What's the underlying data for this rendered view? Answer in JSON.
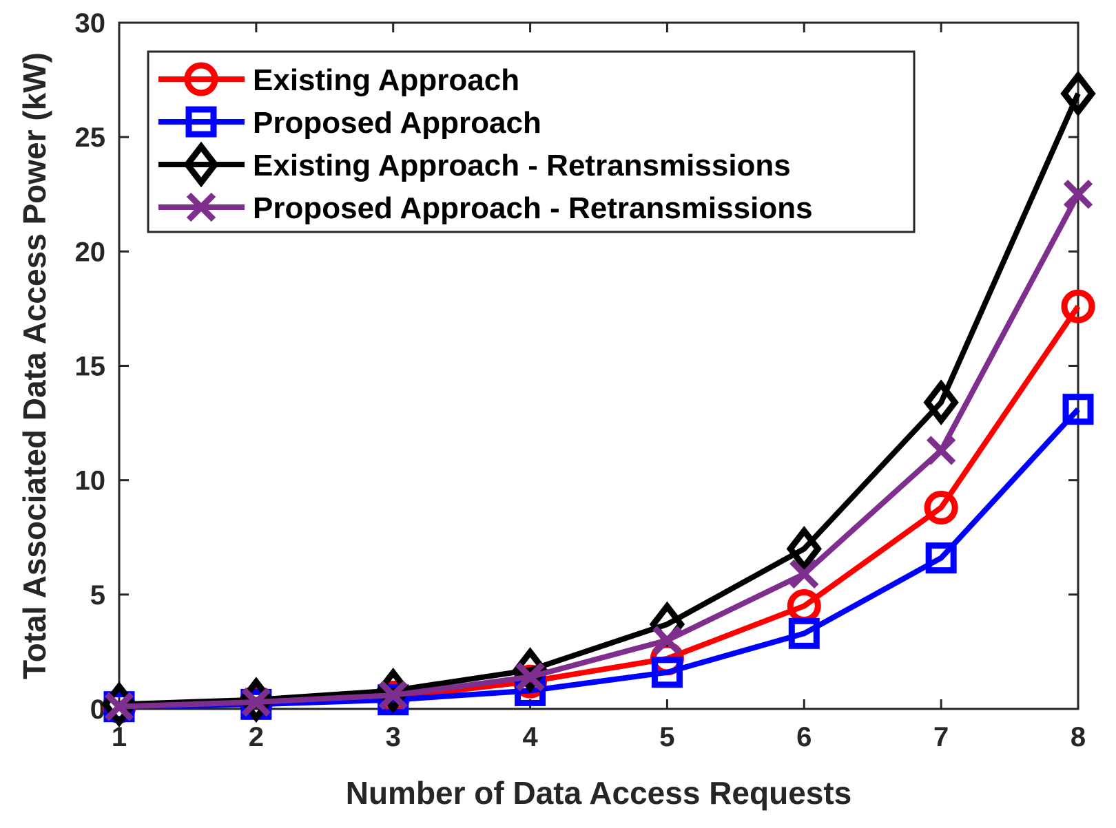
{
  "chart_data": {
    "type": "line",
    "title": "",
    "xlabel": "Number of Data Access Requests",
    "ylabel": "Total Associated Data Access Power (kW)",
    "x": [
      1,
      2,
      3,
      4,
      5,
      6,
      7,
      8
    ],
    "xlim": [
      1,
      8
    ],
    "ylim": [
      0,
      30
    ],
    "xticks": [
      "1",
      "2",
      "3",
      "4",
      "5",
      "6",
      "7",
      "8"
    ],
    "yticks": [
      "0",
      "5",
      "10",
      "15",
      "20",
      "25",
      "30"
    ],
    "grid": false,
    "legend_position": "top-left",
    "series": [
      {
        "name": "Existing Approach",
        "color": "#ff0000",
        "marker": "circle",
        "values": [
          0.1,
          0.3,
          0.5,
          1.2,
          2.2,
          4.5,
          8.8,
          17.6
        ]
      },
      {
        "name": "Proposed Approach",
        "color": "#0000ff",
        "marker": "square",
        "values": [
          0.1,
          0.2,
          0.4,
          0.8,
          1.6,
          3.3,
          6.6,
          13.1
        ]
      },
      {
        "name": "Existing Approach - Retransmissions",
        "color": "#000000",
        "marker": "diamond",
        "values": [
          0.2,
          0.4,
          0.8,
          1.7,
          3.7,
          7.0,
          13.4,
          26.9
        ]
      },
      {
        "name": "Proposed Approach - Retransmissions",
        "color": "#7e2f8e",
        "marker": "x",
        "values": [
          0.1,
          0.3,
          0.6,
          1.4,
          3.0,
          5.9,
          11.3,
          22.5
        ]
      }
    ]
  }
}
